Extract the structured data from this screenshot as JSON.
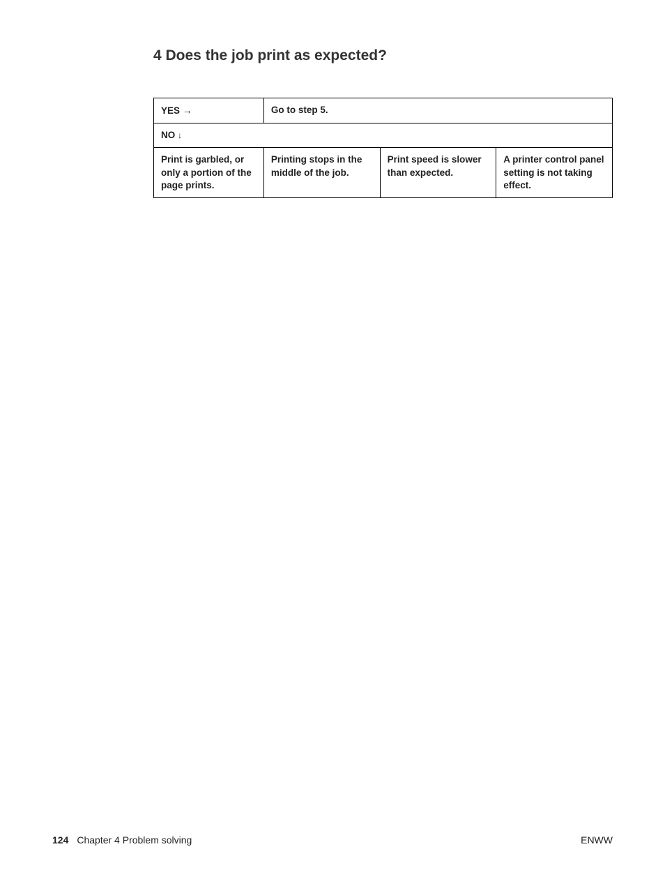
{
  "heading": "4 Does the job print as expected?",
  "table": {
    "yes_label": "YES",
    "yes_arrow": "→",
    "yes_action": "Go to step 5.",
    "no_label": "NO",
    "no_arrow": "↓",
    "col1": "Print is garbled, or only a portion of the page prints.",
    "col2": "Printing stops in the middle of the job.",
    "col3": "Print speed is slower than expected.",
    "col4": "A printer control panel setting is not taking effect."
  },
  "footer": {
    "page_number": "124",
    "chapter": "Chapter 4  Problem solving",
    "right": "ENWW"
  }
}
